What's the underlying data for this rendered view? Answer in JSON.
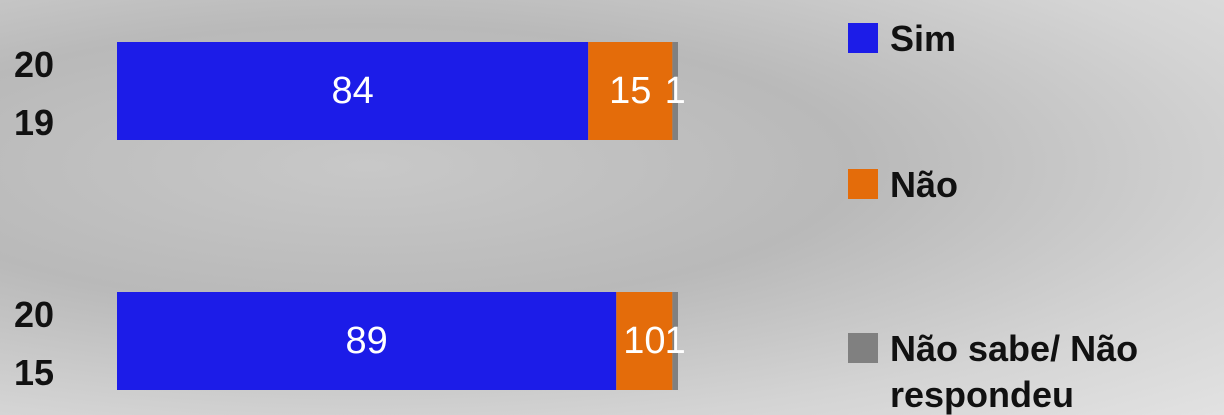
{
  "chart_data": {
    "type": "stacked-bar-horizontal",
    "categories": [
      "2019",
      "2015"
    ],
    "series": [
      {
        "name": "Sim",
        "color": "#1c1ce8",
        "values": [
          84,
          89
        ]
      },
      {
        "name": "Não",
        "color": "#e46c0a",
        "values": [
          15,
          10
        ]
      },
      {
        "name": "Não sabe/ Não respondeu",
        "color": "#808080",
        "values": [
          1,
          1
        ]
      }
    ],
    "xlim": [
      0,
      100
    ]
  }
}
